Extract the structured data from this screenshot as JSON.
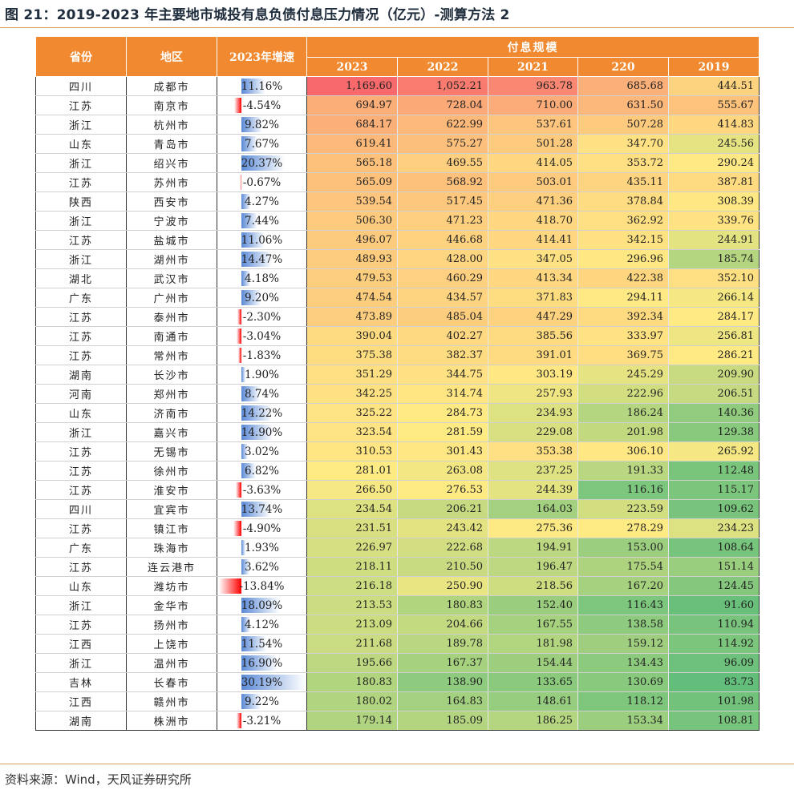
{
  "title": "图 21：2019-2023 年主要地市城投有息负债付息压力情况（亿元）-测算方法 2",
  "source": "资料来源：Wind，天风证券研究所",
  "header": {
    "province": "省份",
    "region": "地区",
    "growth": "2023年增速",
    "group": "付息规模",
    "years": [
      "2023",
      "2022",
      "2021",
      "220",
      "2019"
    ]
  },
  "colors": {
    "header_bg": "#f0892f",
    "scale_high": "#f8696b",
    "scale_mid": "#ffeb84",
    "scale_low": "#63be7b",
    "pos_bar": "#5b8ad6",
    "neg_bar": "#ff0000"
  },
  "growth_max_abs": 30.19,
  "rows": [
    {
      "province": "四川",
      "city": "成都市",
      "growth": "11.16%",
      "g": 11.16,
      "v": [
        "1,169.60",
        "1,052.21",
        "963.78",
        "685.68",
        "444.51"
      ]
    },
    {
      "province": "江苏",
      "city": "南京市",
      "growth": "-4.54%",
      "g": -4.54,
      "v": [
        "694.97",
        "728.04",
        "710.00",
        "631.50",
        "555.67"
      ]
    },
    {
      "province": "浙江",
      "city": "杭州市",
      "growth": "9.82%",
      "g": 9.82,
      "v": [
        "684.17",
        "622.99",
        "537.61",
        "507.28",
        "414.83"
      ]
    },
    {
      "province": "山东",
      "city": "青岛市",
      "growth": "7.67%",
      "g": 7.67,
      "v": [
        "619.41",
        "575.27",
        "501.28",
        "347.70",
        "245.56"
      ]
    },
    {
      "province": "浙江",
      "city": "绍兴市",
      "growth": "20.37%",
      "g": 20.37,
      "v": [
        "565.18",
        "469.55",
        "414.05",
        "353.72",
        "290.24"
      ]
    },
    {
      "province": "江苏",
      "city": "苏州市",
      "growth": "-0.67%",
      "g": -0.67,
      "v": [
        "565.09",
        "568.92",
        "503.01",
        "435.11",
        "387.81"
      ]
    },
    {
      "province": "陕西",
      "city": "西安市",
      "growth": "4.27%",
      "g": 4.27,
      "v": [
        "539.54",
        "517.45",
        "471.36",
        "378.84",
        "308.39"
      ]
    },
    {
      "province": "浙江",
      "city": "宁波市",
      "growth": "7.44%",
      "g": 7.44,
      "v": [
        "506.30",
        "471.23",
        "418.70",
        "362.92",
        "339.76"
      ]
    },
    {
      "province": "江苏",
      "city": "盐城市",
      "growth": "11.06%",
      "g": 11.06,
      "v": [
        "496.07",
        "446.68",
        "414.41",
        "342.15",
        "244.91"
      ]
    },
    {
      "province": "浙江",
      "city": "湖州市",
      "growth": "14.47%",
      "g": 14.47,
      "v": [
        "489.93",
        "428.00",
        "347.05",
        "296.96",
        "185.74"
      ]
    },
    {
      "province": "湖北",
      "city": "武汉市",
      "growth": "4.18%",
      "g": 4.18,
      "v": [
        "479.53",
        "460.29",
        "413.34",
        "422.38",
        "352.10"
      ]
    },
    {
      "province": "广东",
      "city": "广州市",
      "growth": "9.20%",
      "g": 9.2,
      "v": [
        "474.54",
        "434.57",
        "371.83",
        "294.11",
        "266.14"
      ]
    },
    {
      "province": "江苏",
      "city": "泰州市",
      "growth": "-2.30%",
      "g": -2.3,
      "v": [
        "473.89",
        "485.04",
        "447.29",
        "392.34",
        "284.17"
      ]
    },
    {
      "province": "江苏",
      "city": "南通市",
      "growth": "-3.04%",
      "g": -3.04,
      "v": [
        "390.04",
        "402.27",
        "385.56",
        "333.97",
        "256.81"
      ]
    },
    {
      "province": "江苏",
      "city": "常州市",
      "growth": "-1.83%",
      "g": -1.83,
      "v": [
        "375.38",
        "382.37",
        "391.01",
        "369.75",
        "286.21"
      ]
    },
    {
      "province": "湖南",
      "city": "长沙市",
      "growth": "1.90%",
      "g": 1.9,
      "v": [
        "351.29",
        "344.75",
        "303.19",
        "245.29",
        "209.90"
      ]
    },
    {
      "province": "河南",
      "city": "郑州市",
      "growth": "8.74%",
      "g": 8.74,
      "v": [
        "342.25",
        "314.74",
        "257.93",
        "222.96",
        "206.51"
      ]
    },
    {
      "province": "山东",
      "city": "济南市",
      "growth": "14.22%",
      "g": 14.22,
      "v": [
        "325.22",
        "284.73",
        "234.93",
        "186.24",
        "140.36"
      ]
    },
    {
      "province": "浙江",
      "city": "嘉兴市",
      "growth": "14.90%",
      "g": 14.9,
      "v": [
        "323.54",
        "281.59",
        "229.08",
        "201.98",
        "129.38"
      ]
    },
    {
      "province": "江苏",
      "city": "无锡市",
      "growth": "3.02%",
      "g": 3.02,
      "v": [
        "310.53",
        "301.43",
        "353.38",
        "306.10",
        "265.92"
      ]
    },
    {
      "province": "江苏",
      "city": "徐州市",
      "growth": "6.82%",
      "g": 6.82,
      "v": [
        "281.01",
        "263.08",
        "237.25",
        "191.33",
        "112.48"
      ]
    },
    {
      "province": "江苏",
      "city": "淮安市",
      "growth": "-3.63%",
      "g": -3.63,
      "v": [
        "266.50",
        "276.53",
        "244.39",
        "116.16",
        "115.17"
      ]
    },
    {
      "province": "四川",
      "city": "宜宾市",
      "growth": "13.74%",
      "g": 13.74,
      "v": [
        "234.54",
        "206.21",
        "164.03",
        "223.59",
        "109.62"
      ]
    },
    {
      "province": "江苏",
      "city": "镇江市",
      "growth": "-4.90%",
      "g": -4.9,
      "v": [
        "231.51",
        "243.42",
        "275.36",
        "278.29",
        "234.23"
      ]
    },
    {
      "province": "广东",
      "city": "珠海市",
      "growth": "1.93%",
      "g": 1.93,
      "v": [
        "226.97",
        "222.68",
        "194.91",
        "153.00",
        "108.64"
      ]
    },
    {
      "province": "江苏",
      "city": "连云港市",
      "growth": "3.62%",
      "g": 3.62,
      "v": [
        "218.11",
        "210.50",
        "196.47",
        "175.54",
        "151.14"
      ]
    },
    {
      "province": "山东",
      "city": "潍坊市",
      "growth": "-13.84%",
      "g": -13.84,
      "v": [
        "216.18",
        "250.90",
        "218.56",
        "167.20",
        "124.45"
      ]
    },
    {
      "province": "浙江",
      "city": "金华市",
      "growth": "18.09%",
      "g": 18.09,
      "v": [
        "213.53",
        "180.83",
        "152.40",
        "116.43",
        "91.60"
      ]
    },
    {
      "province": "江苏",
      "city": "扬州市",
      "growth": "4.12%",
      "g": 4.12,
      "v": [
        "213.09",
        "204.66",
        "167.55",
        "138.58",
        "110.94"
      ]
    },
    {
      "province": "江西",
      "city": "上饶市",
      "growth": "11.54%",
      "g": 11.54,
      "v": [
        "211.68",
        "189.78",
        "181.98",
        "159.12",
        "114.92"
      ]
    },
    {
      "province": "浙江",
      "city": "温州市",
      "growth": "16.90%",
      "g": 16.9,
      "v": [
        "195.66",
        "167.37",
        "154.44",
        "134.43",
        "96.09"
      ]
    },
    {
      "province": "吉林",
      "city": "长春市",
      "growth": "30.19%",
      "g": 30.19,
      "v": [
        "180.83",
        "138.90",
        "133.65",
        "130.69",
        "83.73"
      ]
    },
    {
      "province": "江西",
      "city": "赣州市",
      "growth": "9.22%",
      "g": 9.22,
      "v": [
        "180.02",
        "164.83",
        "148.61",
        "118.12",
        "101.98"
      ]
    },
    {
      "province": "湖南",
      "city": "株洲市",
      "growth": "-3.21%",
      "g": -3.21,
      "v": [
        "179.14",
        "185.09",
        "186.25",
        "153.34",
        "108.81"
      ]
    }
  ]
}
